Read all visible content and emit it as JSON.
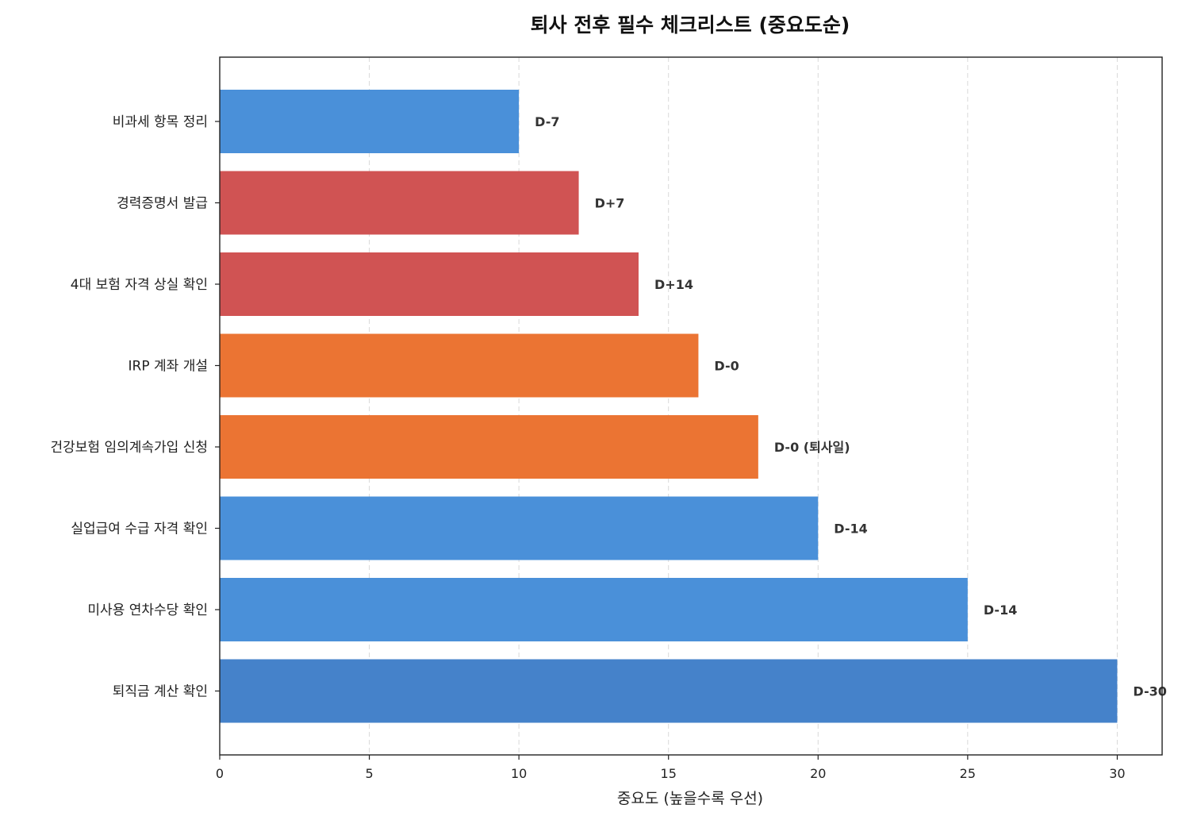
{
  "chart_data": {
    "type": "bar",
    "orientation": "horizontal",
    "title": "퇴사 전후 필수 체크리스트 (중요도순)",
    "xlabel": "중요도 (높을수록 우선)",
    "ylabel": "",
    "xlim": [
      0,
      31.5
    ],
    "xticks": [
      0,
      5,
      10,
      15,
      20,
      25,
      30
    ],
    "grid": "x-dashed",
    "categories": [
      "비과세 항목 정리",
      "경력증명서 발급",
      "4대 보험 자격 상실 확인",
      "IRP 계좌 개설",
      "건강보험 임의계속가입 신청",
      "실업급여 수급 자격 확인",
      "미사용 연차수당 확인",
      "퇴직금 계산 확인"
    ],
    "values": [
      10,
      12,
      14,
      16,
      18,
      20,
      25,
      30
    ],
    "data_labels": [
      "D-7",
      "D+7",
      "D+14",
      "D-0",
      "D-0 (퇴사일)",
      "D-14",
      "D-14",
      "D-30"
    ],
    "colors": [
      "#4a90d9",
      "#d05353",
      "#d05353",
      "#eb7433",
      "#eb7433",
      "#4a90d9",
      "#4a90d9",
      "#4582ca"
    ]
  }
}
